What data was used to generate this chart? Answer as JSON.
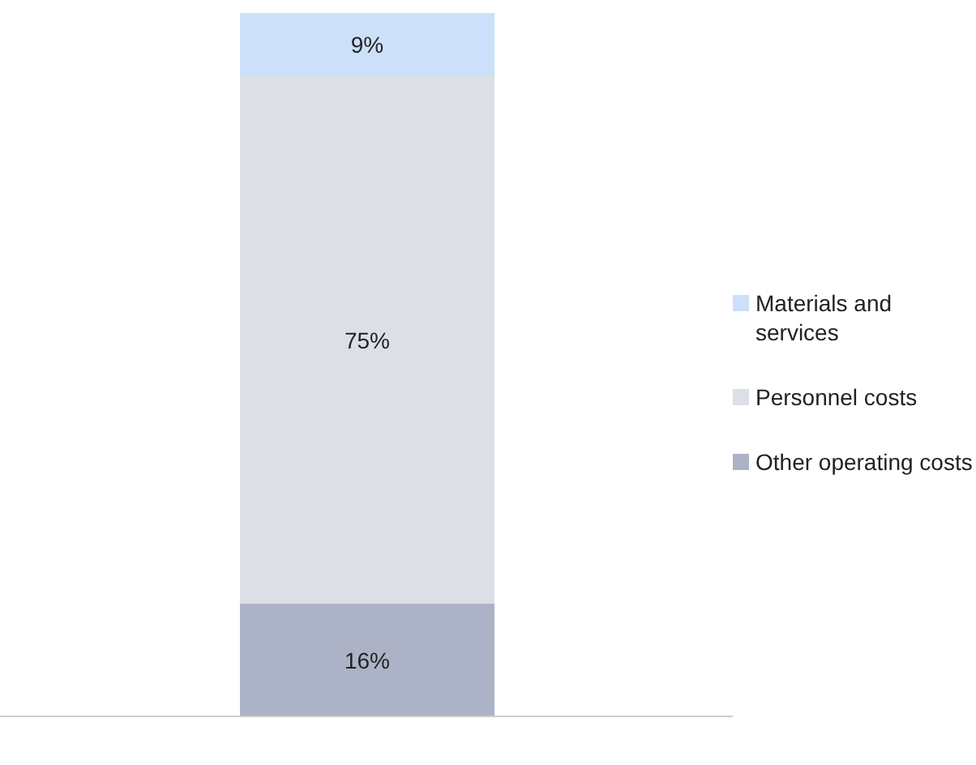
{
  "chart_data": {
    "type": "bar",
    "stacked": true,
    "categories": [
      null
    ],
    "legend": "right",
    "series": [
      {
        "name": "Other operating costs",
        "color": "#adb3c6",
        "values": [
          16
        ],
        "value_labels": [
          "16%"
        ]
      },
      {
        "name": "Personnel costs",
        "color": "#dcdfe6",
        "values": [
          75
        ],
        "value_labels": [
          "75%"
        ]
      },
      {
        "name": "Materials and services",
        "color": "#cce0fa",
        "values": [
          9
        ],
        "value_labels": [
          "9%"
        ]
      }
    ]
  }
}
